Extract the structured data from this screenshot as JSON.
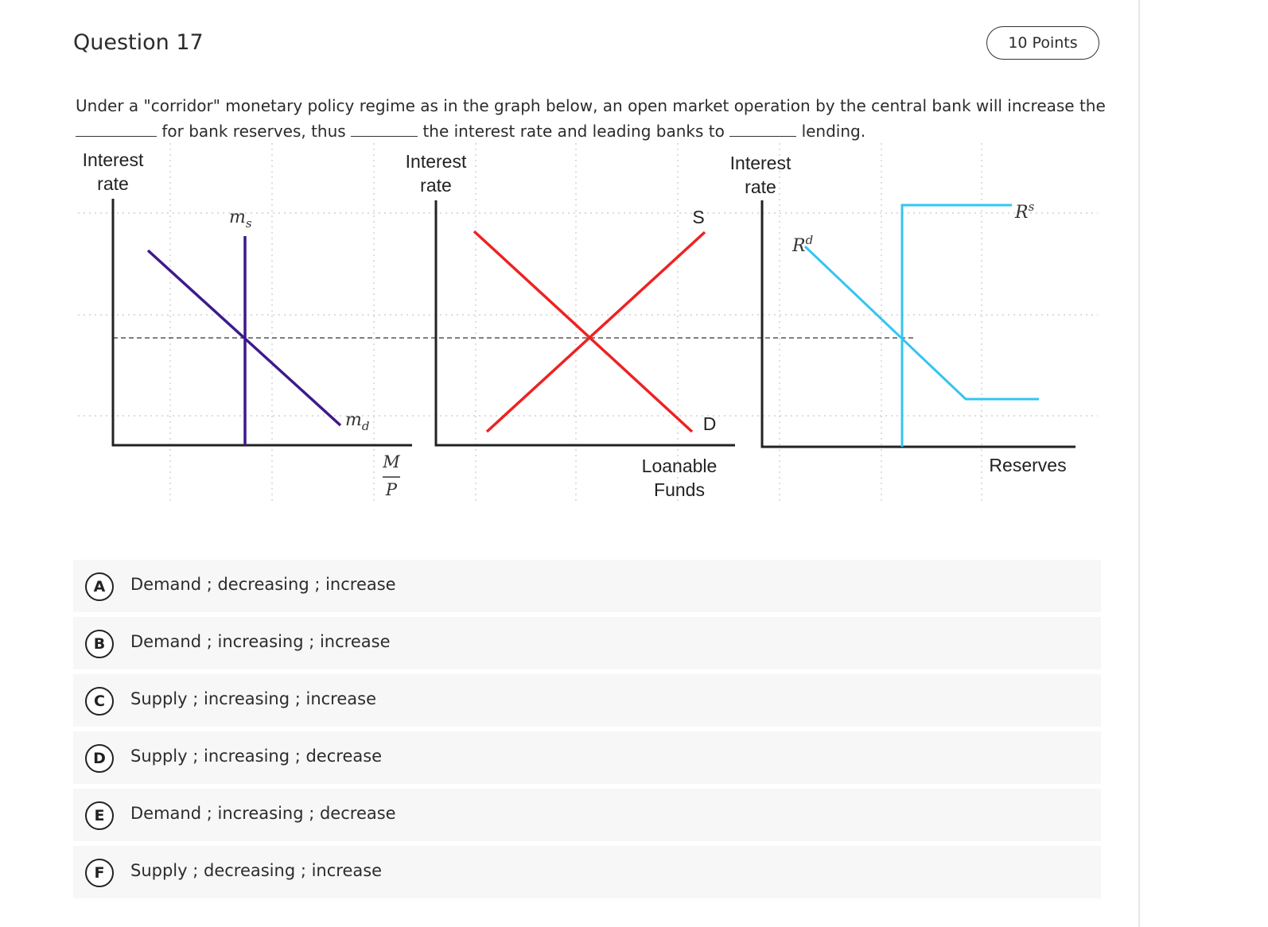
{
  "question": {
    "title": "Question 17",
    "points": "10 Points",
    "prompt_part1": "Under a \"corridor\" monetary policy regime as in the graph below, an open market operation by the central bank will increase the",
    "prompt_part2": "for bank reserves, thus",
    "prompt_part3": "the interest rate and leading banks to",
    "prompt_part4": "lending."
  },
  "graph": {
    "panel1": {
      "y_label_line1": "Interest",
      "y_label_line2": "rate",
      "supply_label": "m",
      "supply_sub": "s",
      "demand_label": "m",
      "demand_sub": "d",
      "x_num": "M",
      "x_den": "P"
    },
    "panel2": {
      "y_label_line1": "Interest",
      "y_label_line2": "rate",
      "supply_label": "S",
      "demand_label": "D",
      "x_label_line1": "Loanable",
      "x_label_line2": "Funds"
    },
    "panel3": {
      "y_label_line1": "Interest",
      "y_label_line2": "rate",
      "demand_label": "R",
      "demand_sup": "d",
      "supply_label": "R",
      "supply_sup": "s",
      "x_label": "Reserves"
    },
    "colors": {
      "money": "#3d1a8c",
      "loanable": "#ee2222",
      "reserves": "#33c5f0"
    }
  },
  "choices": [
    {
      "letter": "A",
      "text": "Demand ; decreasing ; increase"
    },
    {
      "letter": "B",
      "text": "Demand ; increasing ; increase"
    },
    {
      "letter": "C",
      "text": "Supply ; increasing ; increase"
    },
    {
      "letter": "D",
      "text": "Supply ; increasing ; decrease"
    },
    {
      "letter": "E",
      "text": "Demand ; increasing ; decrease"
    },
    {
      "letter": "F",
      "text": "Supply ; decreasing ; increase"
    }
  ]
}
